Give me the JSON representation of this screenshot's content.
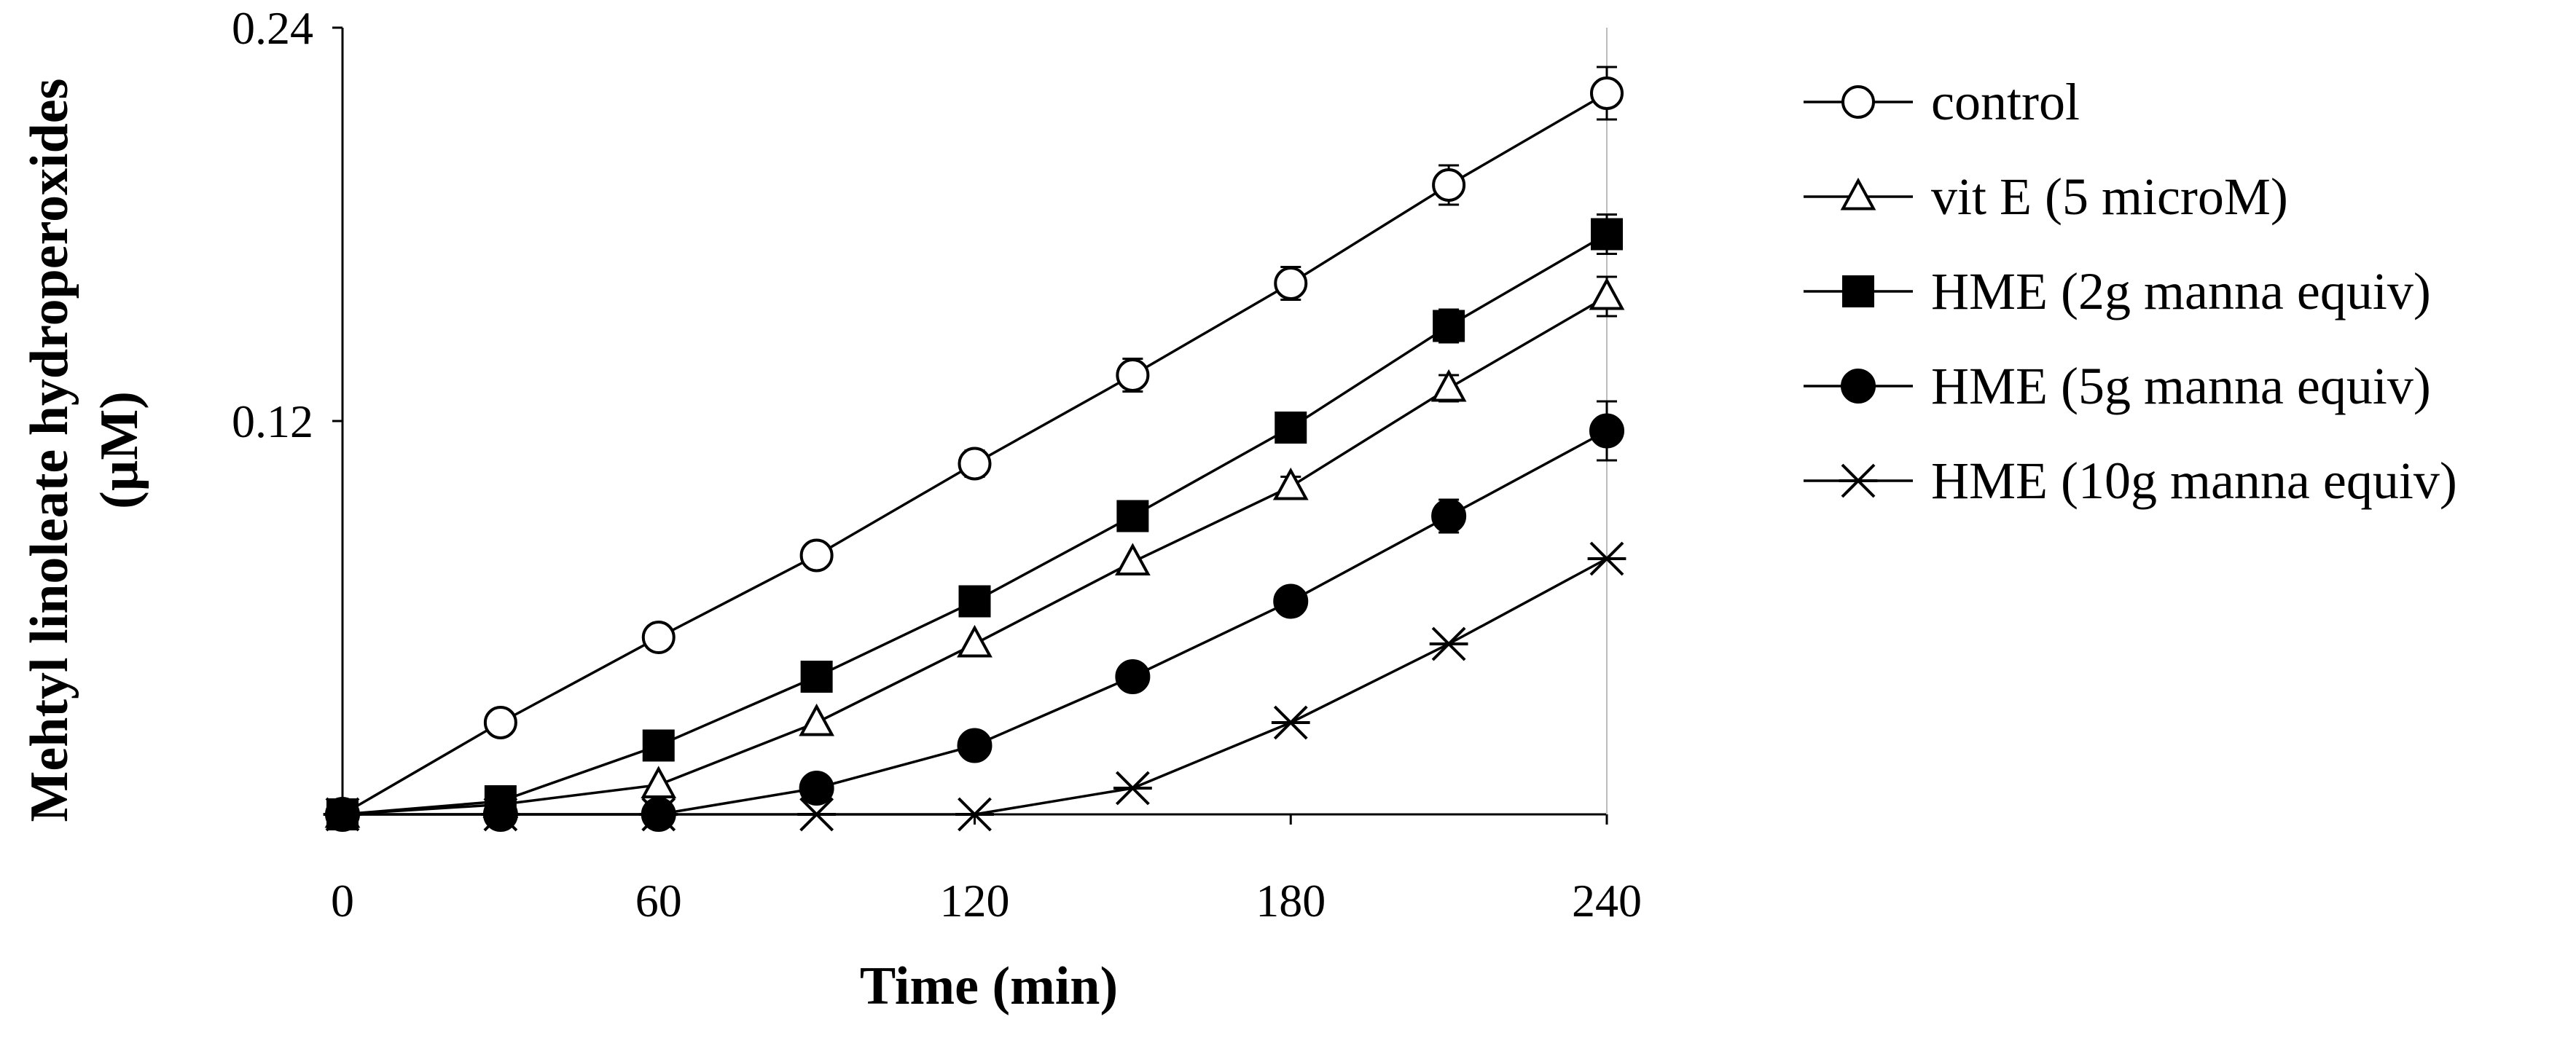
{
  "chart_data": {
    "type": "line",
    "title": "",
    "xlabel": "Time (min)",
    "ylabel_line1": "Mehtyl linoleate hydroperoxides",
    "ylabel_line2": "(µM)",
    "xlim": [
      0,
      240
    ],
    "ylim": [
      0,
      0.24
    ],
    "xticks": [
      0,
      60,
      120,
      180,
      240
    ],
    "xtick_labels": [
      "0",
      "60",
      "120",
      "180",
      "240"
    ],
    "yticks": [
      0.12,
      0.24
    ],
    "ytick_labels": [
      "0.12",
      "0.24"
    ],
    "grid": false,
    "legend_position": "right",
    "x": [
      0,
      30,
      60,
      90,
      120,
      150,
      180,
      210,
      240
    ],
    "series": [
      {
        "name": "control",
        "marker": "circle-open",
        "values": [
          0,
          0.028,
          0.054,
          0.079,
          0.107,
          0.134,
          0.162,
          0.192,
          0.22
        ],
        "errors": [
          0,
          0,
          0.003,
          0,
          0.004,
          0.005,
          0.005,
          0.006,
          0.008
        ]
      },
      {
        "name": "vit E (5 microM)",
        "marker": "triangle-open",
        "values": [
          0,
          0.003,
          0.009,
          0.028,
          0.052,
          0.077,
          0.1,
          0.13,
          0.158
        ],
        "errors": [
          0,
          0,
          0,
          0,
          0,
          0,
          0.003,
          0.004,
          0.006
        ]
      },
      {
        "name": "HME (2g manna equiv)",
        "marker": "square-filled",
        "values": [
          0,
          0.004,
          0.021,
          0.042,
          0.065,
          0.091,
          0.118,
          0.149,
          0.177
        ],
        "errors": [
          0,
          0,
          0,
          0,
          0,
          0,
          0.004,
          0.005,
          0.006
        ]
      },
      {
        "name": "HME (5g manna equiv)",
        "marker": "circle-filled",
        "values": [
          0,
          0,
          0,
          0.008,
          0.021,
          0.042,
          0.065,
          0.091,
          0.117
        ],
        "errors": [
          0,
          0,
          0,
          0,
          0,
          0,
          0.004,
          0.005,
          0.009
        ]
      },
      {
        "name": "HME (10g manna equiv)",
        "marker": "star",
        "values": [
          0,
          0,
          0,
          0,
          0,
          0.008,
          0.028,
          0.052,
          0.078
        ],
        "errors": [
          0,
          0,
          0,
          0,
          0,
          0,
          0,
          0,
          0
        ]
      }
    ]
  }
}
